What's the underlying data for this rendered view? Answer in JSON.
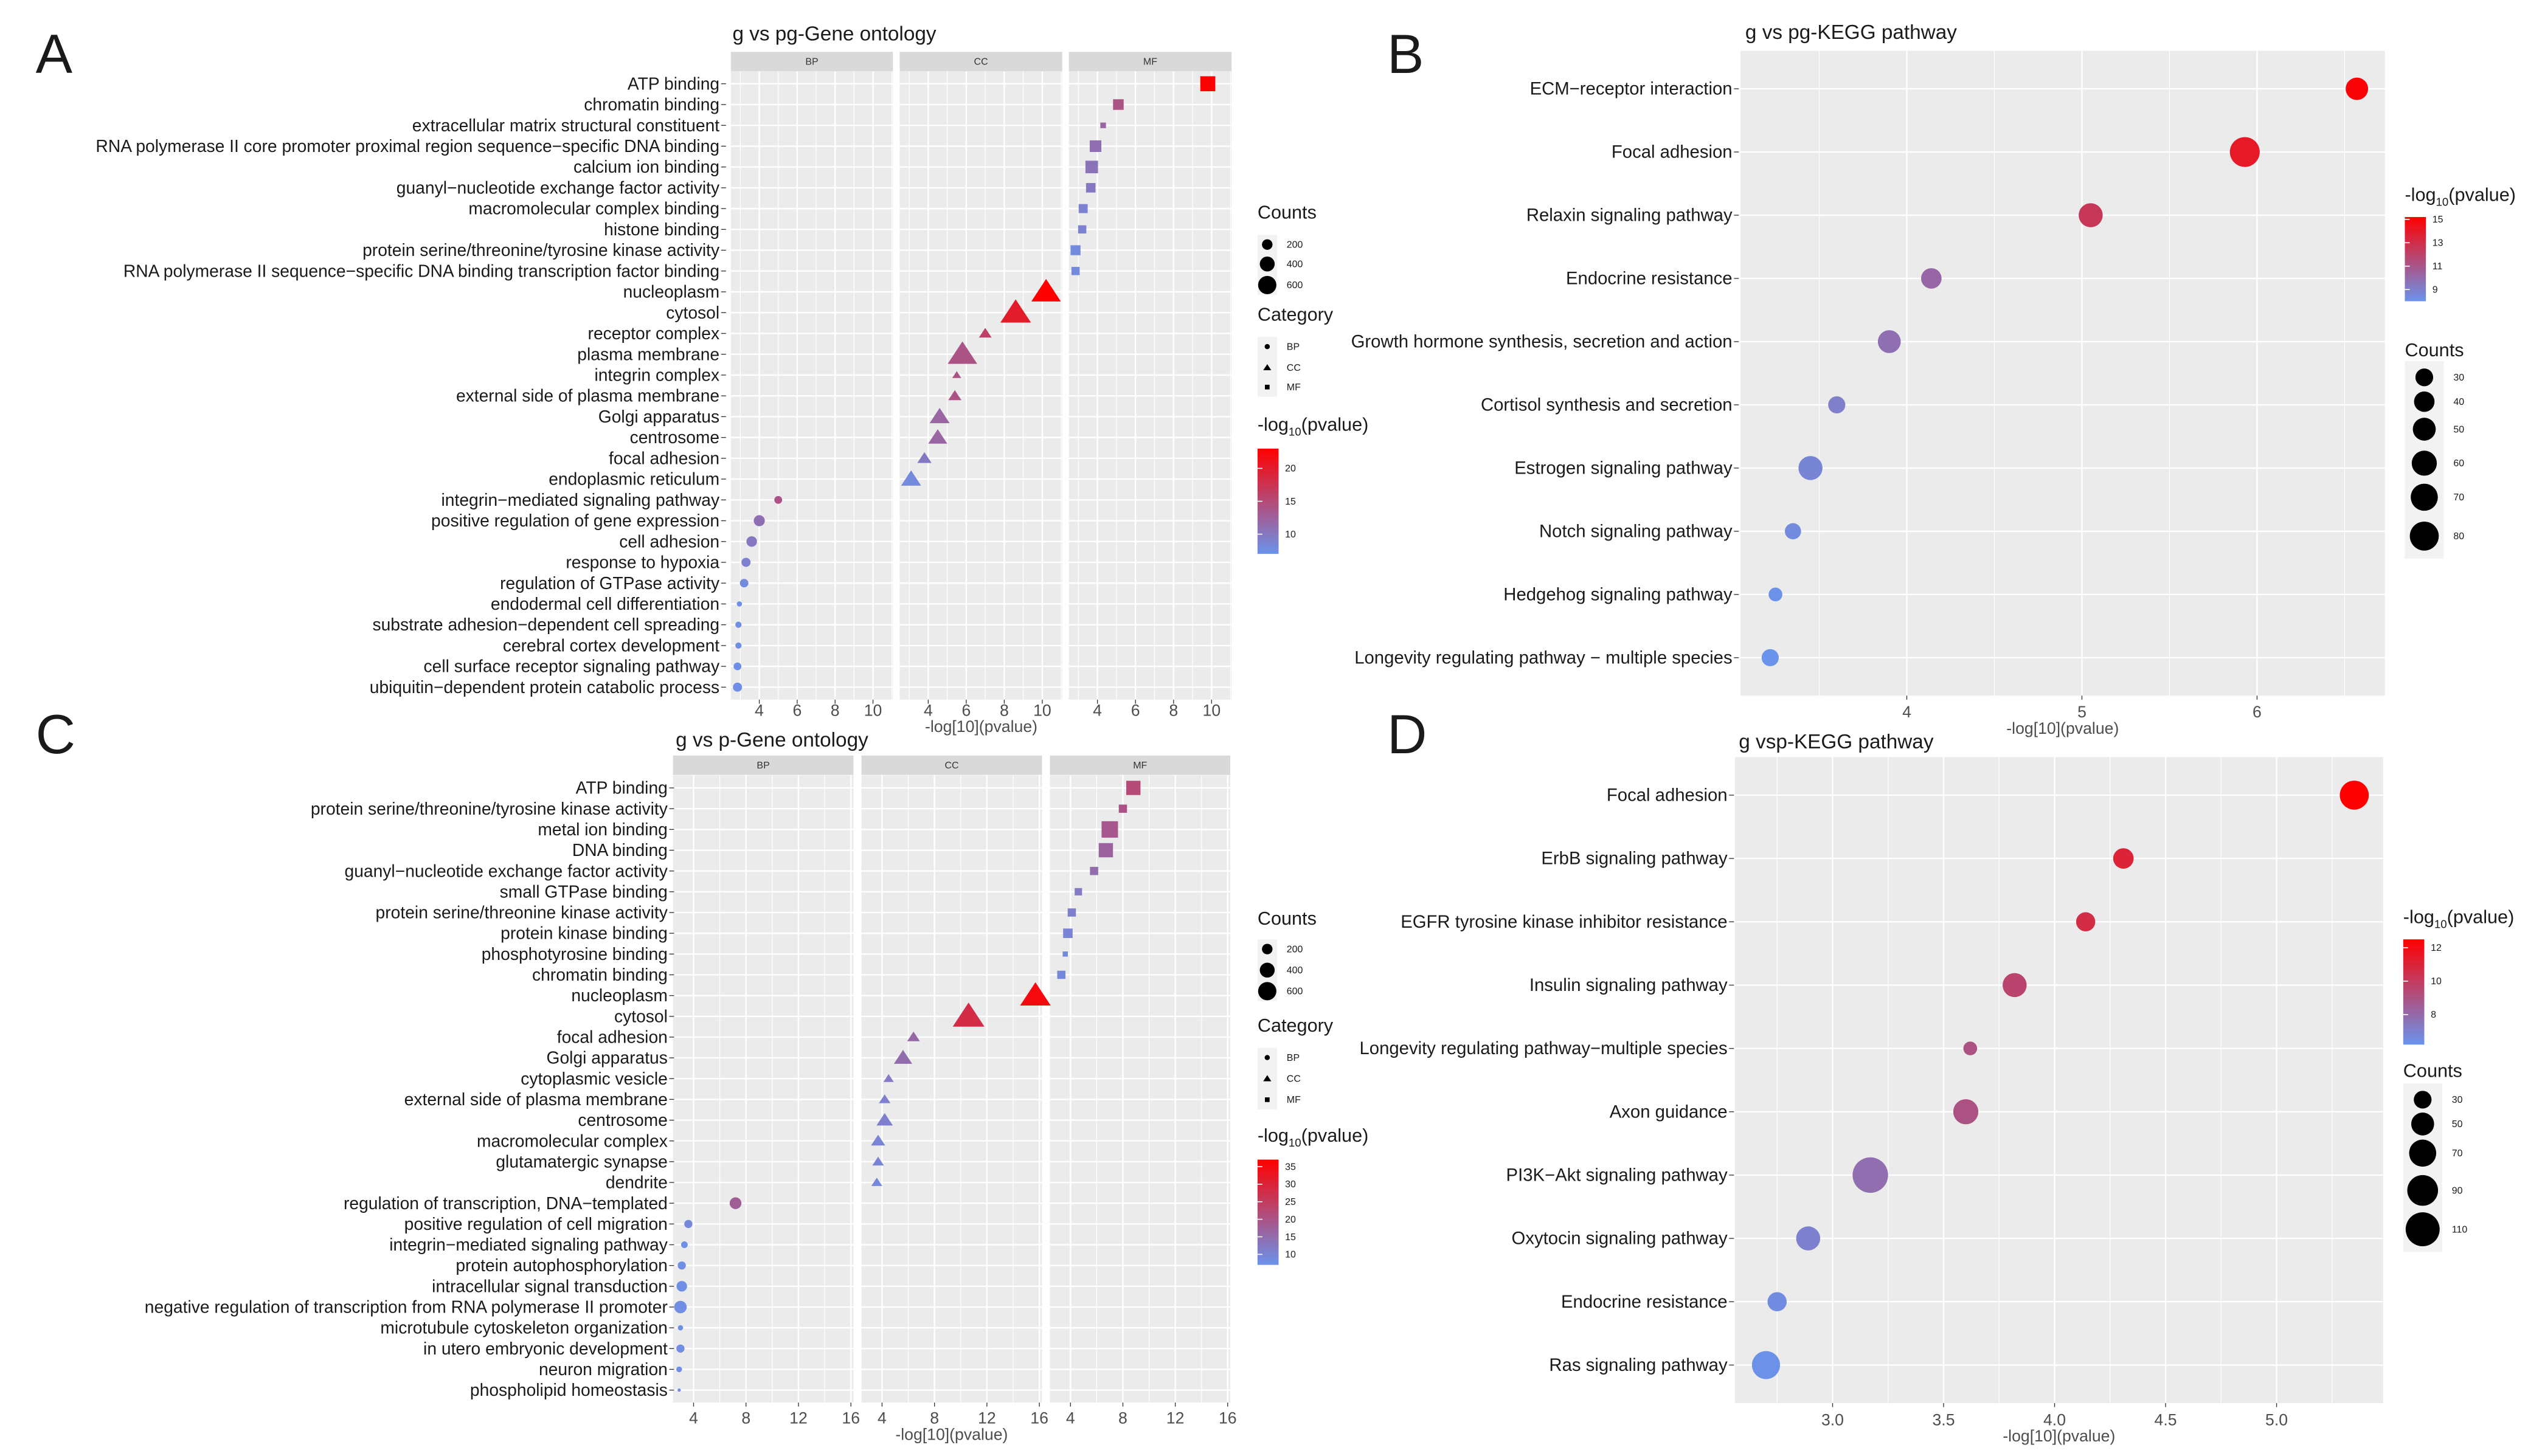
{
  "chart_data": [
    {
      "panel": "A",
      "type": "scatter",
      "title": "g vs pg-Gene ontology",
      "xlabel": "-log[10](pvalue)",
      "facets": [
        "BP",
        "CC",
        "MF"
      ],
      "xlim": [
        2.5,
        11.05
      ],
      "xticks": [
        4,
        6,
        8,
        10
      ],
      "size_legend": {
        "title": "Counts",
        "values": [
          200,
          400,
          600
        ]
      },
      "shape_legend": {
        "title": "Category",
        "entries": [
          "BP",
          "CC",
          "MF"
        ]
      },
      "color_legend": {
        "title_prefix": "-log",
        "title_sub": "10",
        "title_suffix": "(pvalue)",
        "range": [
          7,
          23
        ],
        "ticks": [
          10,
          15,
          20
        ]
      },
      "points": [
        {
          "term": "ATP binding",
          "category": "MF",
          "x": 9.8,
          "count": 500,
          "color_value": 23
        },
        {
          "term": "chromatin binding",
          "category": "MF",
          "x": 5.1,
          "count": 250,
          "color_value": 14
        },
        {
          "term": "extracellular matrix structural constituent",
          "category": "MF",
          "x": 4.3,
          "count": 70,
          "color_value": 12
        },
        {
          "term": "RNA polymerase II core promoter proximal region sequence−specific DNA binding",
          "category": "MF",
          "x": 3.9,
          "count": 300,
          "color_value": 11
        },
        {
          "term": "calcium ion binding",
          "category": "MF",
          "x": 3.7,
          "count": 350,
          "color_value": 10.5
        },
        {
          "term": "guanyl−nucleotide exchange factor activity",
          "category": "MF",
          "x": 3.65,
          "count": 200,
          "color_value": 10
        },
        {
          "term": "macromolecular complex binding",
          "category": "MF",
          "x": 3.25,
          "count": 180,
          "color_value": 9
        },
        {
          "term": "histone binding",
          "category": "MF",
          "x": 3.2,
          "count": 150,
          "color_value": 9
        },
        {
          "term": "protein serine/threonine/tyrosine kinase activity",
          "category": "MF",
          "x": 2.85,
          "count": 220,
          "color_value": 8
        },
        {
          "term": "RNA polymerase II sequence−specific DNA binding transcription factor binding",
          "category": "MF",
          "x": 2.85,
          "count": 150,
          "color_value": 8
        },
        {
          "term": "nucleoplasm",
          "category": "CC",
          "x": 10.2,
          "count": 650,
          "color_value": 23
        },
        {
          "term": "cytosol",
          "category": "CC",
          "x": 8.6,
          "count": 700,
          "color_value": 20
        },
        {
          "term": "receptor complex",
          "category": "CC",
          "x": 7.0,
          "count": 120,
          "color_value": 16
        },
        {
          "term": "plasma membrane",
          "category": "CC",
          "x": 5.8,
          "count": 650,
          "color_value": 14
        },
        {
          "term": "integrin complex",
          "category": "CC",
          "x": 5.5,
          "count": 60,
          "color_value": 14
        },
        {
          "term": "external side of plasma membrane",
          "category": "CC",
          "x": 5.4,
          "count": 130,
          "color_value": 14
        },
        {
          "term": "Golgi apparatus",
          "category": "CC",
          "x": 4.6,
          "count": 300,
          "color_value": 12
        },
        {
          "term": "centrosome",
          "category": "CC",
          "x": 4.5,
          "count": 270,
          "color_value": 12
        },
        {
          "term": "focal adhesion",
          "category": "CC",
          "x": 3.8,
          "count": 150,
          "color_value": 10
        },
        {
          "term": "endoplasmic reticulum",
          "category": "CC",
          "x": 3.1,
          "count": 300,
          "color_value": 8
        },
        {
          "term": "integrin−mediated signaling pathway",
          "category": "BP",
          "x": 5.0,
          "count": 110,
          "color_value": 14
        },
        {
          "term": "positive regulation of gene expression",
          "category": "BP",
          "x": 4.0,
          "count": 220,
          "color_value": 11
        },
        {
          "term": "cell adhesion",
          "category": "BP",
          "x": 3.6,
          "count": 200,
          "color_value": 10
        },
        {
          "term": "response to hypoxia",
          "category": "BP",
          "x": 3.3,
          "count": 150,
          "color_value": 9
        },
        {
          "term": "regulation of GTPase activity",
          "category": "BP",
          "x": 3.2,
          "count": 130,
          "color_value": 8
        },
        {
          "term": "endodermal cell differentiation",
          "category": "BP",
          "x": 2.95,
          "count": 50,
          "color_value": 7.5
        },
        {
          "term": "substrate adhesion−dependent cell spreading",
          "category": "BP",
          "x": 2.9,
          "count": 70,
          "color_value": 7.5
        },
        {
          "term": "cerebral cortex development",
          "category": "BP",
          "x": 2.9,
          "count": 70,
          "color_value": 7.5
        },
        {
          "term": "cell surface receptor signaling pathway",
          "category": "BP",
          "x": 2.85,
          "count": 110,
          "color_value": 7.5
        },
        {
          "term": "ubiquitin−dependent protein catabolic process",
          "category": "BP",
          "x": 2.85,
          "count": 150,
          "color_value": 7.5
        }
      ]
    },
    {
      "panel": "B",
      "type": "scatter",
      "title": "g vs pg-KEGG pathway",
      "xlabel": "-log[10](pvalue)",
      "xlim": [
        3.05,
        6.73
      ],
      "xticks": [
        4,
        5,
        6
      ],
      "color_legend": {
        "title_prefix": "-log",
        "title_sub": "10",
        "title_suffix": "(pvalue)",
        "range": [
          8,
          15.2
        ],
        "ticks": [
          9,
          11,
          13,
          15
        ]
      },
      "size_legend": {
        "title": "Counts",
        "values": [
          30,
          40,
          50,
          60,
          70,
          80
        ]
      },
      "points": [
        {
          "term": "ECM−receptor interaction",
          "x": 6.57,
          "count": 48,
          "color_value": 15
        },
        {
          "term": "Focal adhesion",
          "x": 5.93,
          "count": 85,
          "color_value": 14
        },
        {
          "term": "Relaxin signaling pathway",
          "x": 5.05,
          "count": 55,
          "color_value": 12.5
        },
        {
          "term": "Endocrine resistance",
          "x": 4.14,
          "count": 40,
          "color_value": 10.2
        },
        {
          "term": "Growth hormone synthesis, secretion and action",
          "x": 3.9,
          "count": 50,
          "color_value": 9.8
        },
        {
          "term": "Cortisol synthesis and secretion",
          "x": 3.6,
          "count": 28,
          "color_value": 9
        },
        {
          "term": "Estrogen signaling pathway",
          "x": 3.45,
          "count": 55,
          "color_value": 8.7
        },
        {
          "term": "Notch signaling pathway",
          "x": 3.35,
          "count": 25,
          "color_value": 8.4
        },
        {
          "term": "Hedgehog signaling pathway",
          "x": 3.25,
          "count": 18,
          "color_value": 8.1
        },
        {
          "term": "Longevity regulating pathway − multiple species",
          "x": 3.22,
          "count": 28,
          "color_value": 8
        }
      ]
    },
    {
      "panel": "C",
      "type": "scatter",
      "title": "g vs p-Gene ontology",
      "xlabel": "-log[10](pvalue)",
      "facets": [
        "BP",
        "CC",
        "MF"
      ],
      "xlim": [
        2.43,
        16.2
      ],
      "xticks": [
        4,
        8,
        12,
        16
      ],
      "size_legend": {
        "title": "Counts",
        "values": [
          200,
          400,
          600
        ]
      },
      "shape_legend": {
        "title": "Category",
        "entries": [
          "BP",
          "CC",
          "MF"
        ]
      },
      "color_legend": {
        "title_prefix": "-log",
        "title_sub": "10",
        "title_suffix": "(pvalue)",
        "range": [
          7,
          37
        ],
        "ticks": [
          10,
          15,
          20,
          25,
          30,
          35
        ]
      },
      "points": [
        {
          "term": "ATP binding",
          "category": "MF",
          "x": 8.8,
          "count": 450,
          "color_value": 22
        },
        {
          "term": "protein serine/threonine/tyrosine kinase activity",
          "category": "MF",
          "x": 8.0,
          "count": 150,
          "color_value": 20
        },
        {
          "term": "metal ion binding",
          "category": "MF",
          "x": 7.0,
          "count": 600,
          "color_value": 19
        },
        {
          "term": "DNA binding",
          "category": "MF",
          "x": 6.7,
          "count": 450,
          "color_value": 17
        },
        {
          "term": "guanyl−nucleotide exchange factor activity",
          "category": "MF",
          "x": 5.8,
          "count": 150,
          "color_value": 15
        },
        {
          "term": "small GTPase binding",
          "category": "MF",
          "x": 4.6,
          "count": 120,
          "color_value": 12
        },
        {
          "term": "protein serine/threonine kinase activity",
          "category": "MF",
          "x": 4.1,
          "count": 150,
          "color_value": 11
        },
        {
          "term": "protein kinase binding",
          "category": "MF",
          "x": 3.8,
          "count": 200,
          "color_value": 10
        },
        {
          "term": "phosphotyrosine binding",
          "category": "MF",
          "x": 3.6,
          "count": 60,
          "color_value": 9
        },
        {
          "term": "chromatin binding",
          "category": "MF",
          "x": 3.3,
          "count": 150,
          "color_value": 9
        },
        {
          "term": "nucleoplasm",
          "category": "CC",
          "x": 15.7,
          "count": 700,
          "color_value": 35
        },
        {
          "term": "cytosol",
          "category": "CC",
          "x": 10.6,
          "count": 750,
          "color_value": 28
        },
        {
          "term": "focal adhesion",
          "category": "CC",
          "x": 6.4,
          "count": 120,
          "color_value": 16
        },
        {
          "term": "Golgi apparatus",
          "category": "CC",
          "x": 5.6,
          "count": 250,
          "color_value": 15
        },
        {
          "term": "cytoplasmic vesicle",
          "category": "CC",
          "x": 4.5,
          "count": 80,
          "color_value": 12
        },
        {
          "term": "external side of plasma membrane",
          "category": "CC",
          "x": 4.2,
          "count": 100,
          "color_value": 11
        },
        {
          "term": "centrosome",
          "category": "CC",
          "x": 4.2,
          "count": 200,
          "color_value": 11
        },
        {
          "term": "macromolecular complex",
          "category": "CC",
          "x": 3.7,
          "count": 150,
          "color_value": 10
        },
        {
          "term": "glutamatergic synapse",
          "category": "CC",
          "x": 3.7,
          "count": 100,
          "color_value": 10
        },
        {
          "term": "dendrite",
          "category": "CC",
          "x": 3.6,
          "count": 90,
          "color_value": 9
        },
        {
          "term": "regulation of transcription, DNA−templated",
          "category": "BP",
          "x": 7.2,
          "count": 250,
          "color_value": 18
        },
        {
          "term": "positive regulation of cell migration",
          "category": "BP",
          "x": 3.6,
          "count": 120,
          "color_value": 9
        },
        {
          "term": "integrin−mediated signaling pathway",
          "category": "BP",
          "x": 3.3,
          "count": 80,
          "color_value": 8
        },
        {
          "term": "protein autophosphorylation",
          "category": "BP",
          "x": 3.1,
          "count": 120,
          "color_value": 8
        },
        {
          "term": "intracellular signal transduction",
          "category": "BP",
          "x": 3.1,
          "count": 200,
          "color_value": 8
        },
        {
          "term": "negative regulation of transcription from RNA polymerase II promoter",
          "category": "BP",
          "x": 3.0,
          "count": 280,
          "color_value": 8
        },
        {
          "term": "microtubule cytoskeleton organization",
          "category": "BP",
          "x": 3.0,
          "count": 50,
          "color_value": 8
        },
        {
          "term": "in utero embryonic development",
          "category": "BP",
          "x": 3.0,
          "count": 120,
          "color_value": 8
        },
        {
          "term": "neuron migration",
          "category": "BP",
          "x": 2.9,
          "count": 60,
          "color_value": 8
        },
        {
          "term": "phospholipid homeostasis",
          "category": "BP",
          "x": 2.9,
          "count": 20,
          "color_value": 8
        }
      ]
    },
    {
      "panel": "D",
      "type": "scatter",
      "title": "g vsp-KEGG pathway",
      "xlabel": "-log[10](pvalue)",
      "xlim": [
        2.56,
        5.48
      ],
      "xticks": [
        3.0,
        3.5,
        4.0,
        4.5,
        5.0
      ],
      "xtick_labels": [
        "3.0",
        "3.5",
        "4.0",
        "4.5",
        "5.0"
      ],
      "color_legend": {
        "title_prefix": "-log",
        "title_sub": "10",
        "title_suffix": "(pvalue)",
        "range": [
          6.2,
          12.5
        ],
        "ticks": [
          8,
          10,
          12
        ]
      },
      "size_legend": {
        "title": "Counts",
        "values": [
          30,
          50,
          70,
          90,
          110
        ]
      },
      "points": [
        {
          "term": "Focal adhesion",
          "x": 5.35,
          "count": 80,
          "color_value": 12.5
        },
        {
          "term": "ErbB signaling pathway",
          "x": 4.31,
          "count": 40,
          "color_value": 11
        },
        {
          "term": "EGFR tyrosine kinase inhibitor resistance",
          "x": 4.14,
          "count": 35,
          "color_value": 10.6
        },
        {
          "term": "Insulin signaling pathway",
          "x": 3.82,
          "count": 55,
          "color_value": 9.6
        },
        {
          "term": "Longevity regulating pathway−multiple species",
          "x": 3.62,
          "count": 18,
          "color_value": 9
        },
        {
          "term": "Axon guidance",
          "x": 3.6,
          "count": 60,
          "color_value": 9
        },
        {
          "term": "PI3K−Akt signaling pathway",
          "x": 3.17,
          "count": 120,
          "color_value": 7.8
        },
        {
          "term": "Oxytocin signaling pathway",
          "x": 2.89,
          "count": 55,
          "color_value": 7
        },
        {
          "term": "Endocrine resistance",
          "x": 2.75,
          "count": 35,
          "color_value": 6.5
        },
        {
          "term": "Ras signaling pathway",
          "x": 2.7,
          "count": 75,
          "color_value": 6.3
        }
      ]
    }
  ],
  "colors": {
    "low": "#6a93ec",
    "high": "#ff0000",
    "panel_bg": "#ebebeb",
    "strip_bg": "#d9d9d9",
    "grid": "#ffffff"
  }
}
